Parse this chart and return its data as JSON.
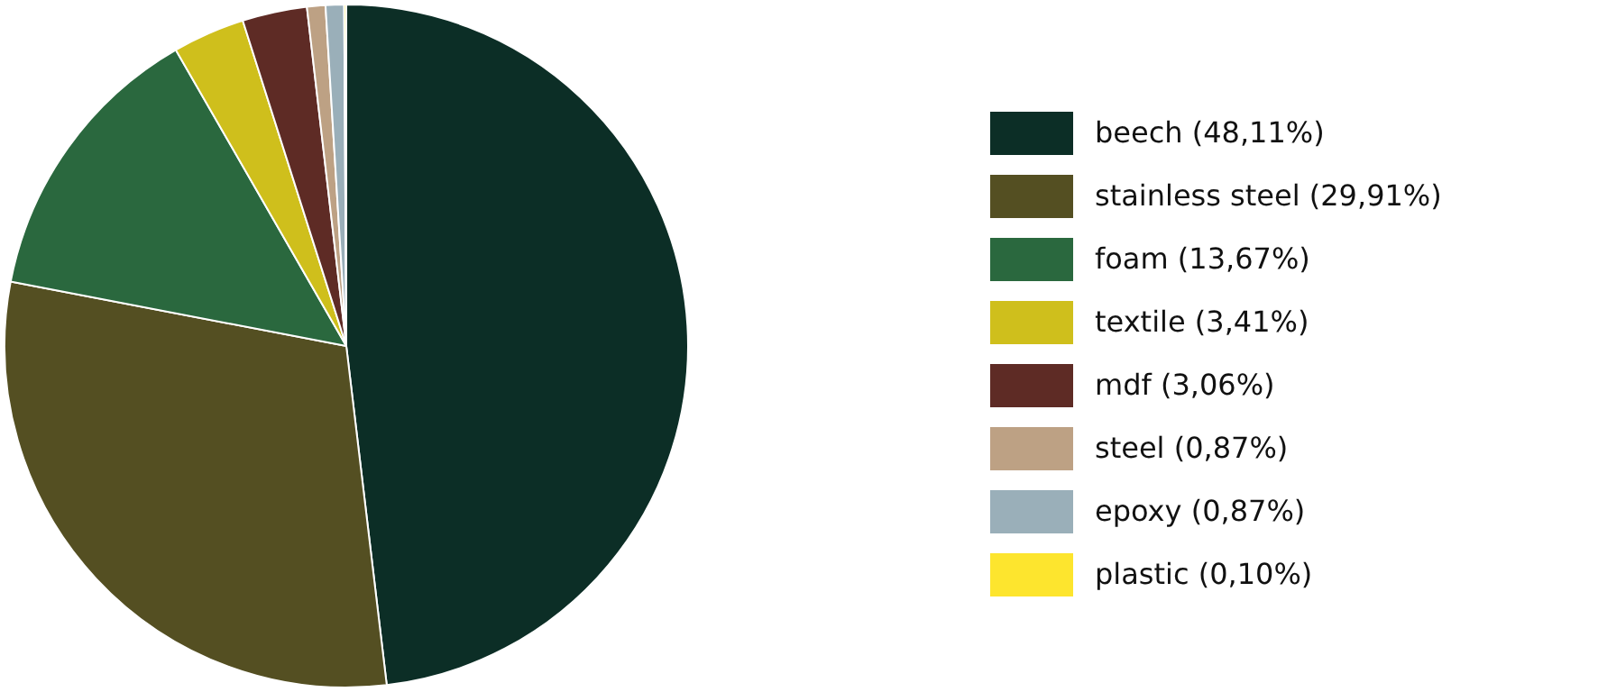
{
  "chart_data": {
    "type": "pie",
    "categories": [
      "beech (48,11%)",
      "stainless steel (29,91%)",
      "foam (13,67%)",
      "textile (3,41%)",
      "mdf (3,06%)",
      "steel (0,87%)",
      "epoxy (0,87%)",
      "plastic (0,10%)"
    ],
    "values": [
      48.11,
      29.91,
      13.67,
      3.41,
      3.06,
      0.87,
      0.87,
      0.1
    ],
    "colors": [
      "#0c2e26",
      "#544f22",
      "#2a683e",
      "#cfbf1c",
      "#5e2b25",
      "#bda184",
      "#9aafb9",
      "#fde52e"
    ],
    "legend": "right"
  }
}
